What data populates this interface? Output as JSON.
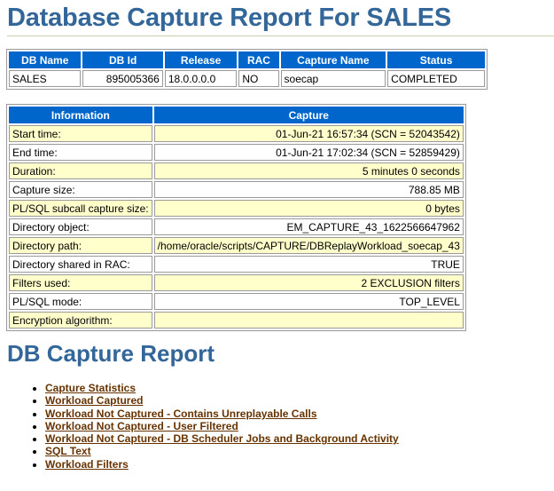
{
  "page": {
    "title": "Database Capture Report For SALES"
  },
  "summary": {
    "headers": [
      "DB Name",
      "DB Id",
      "Release",
      "RAC",
      "Capture Name",
      "Status"
    ],
    "row": [
      "SALES",
      "895005366",
      "18.0.0.0.0",
      "NO",
      "soecap",
      "COMPLETED"
    ]
  },
  "info": {
    "headers": [
      "Information",
      "Capture"
    ],
    "rows": [
      {
        "label": "Start time:",
        "value": "01-Jun-21 16:57:34 (SCN = 52043542)"
      },
      {
        "label": "End time:",
        "value": "01-Jun-21 17:02:34 (SCN = 52859429)"
      },
      {
        "label": "Duration:",
        "value": "5 minutes 0 seconds"
      },
      {
        "label": "Capture size:",
        "value": "788.85 MB"
      },
      {
        "label": "PL/SQL subcall capture size:",
        "value": "0 bytes"
      },
      {
        "label": "Directory object:",
        "value": "EM_CAPTURE_43_1622566647962"
      },
      {
        "label": "Directory path:",
        "value": "/home/oracle/scripts/CAPTURE/DBReplayWorkload_soecap_43"
      },
      {
        "label": "Directory shared in RAC:",
        "value": "TRUE"
      },
      {
        "label": "Filters used:",
        "value": "2 EXCLUSION filters"
      },
      {
        "label": "PL/SQL mode:",
        "value": "TOP_LEVEL"
      },
      {
        "label": "Encryption algorithm:",
        "value": ""
      }
    ]
  },
  "report": {
    "title": "DB Capture Report",
    "links": [
      "Capture Statistics",
      "Workload Captured",
      "Workload Not Captured - Contains Unreplayable Calls",
      "Workload Not Captured - User Filtered",
      "Workload Not Captured - DB Scheduler Jobs and Background Activity",
      "SQL Text",
      "Workload Filters"
    ]
  }
}
